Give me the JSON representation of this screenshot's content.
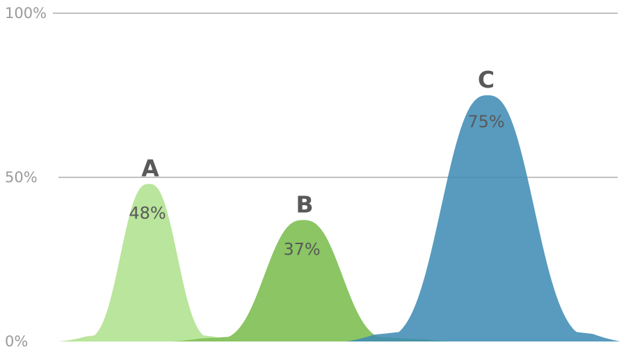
{
  "chart_data": {
    "type": "area",
    "title": "",
    "xlabel": "",
    "ylabel": "",
    "ylim": [
      0,
      100
    ],
    "yticks": [
      "0%",
      "50%",
      "100%"
    ],
    "grid": true,
    "legend": "none",
    "series": [
      {
        "name": "A",
        "value": 48,
        "value_label": "48%",
        "color": "#b8e49a"
      },
      {
        "name": "B",
        "value": 37,
        "value_label": "37%",
        "color": "#86c35e"
      },
      {
        "name": "C",
        "value": 75,
        "value_label": "75%",
        "color": "#3d8bb3"
      }
    ]
  }
}
